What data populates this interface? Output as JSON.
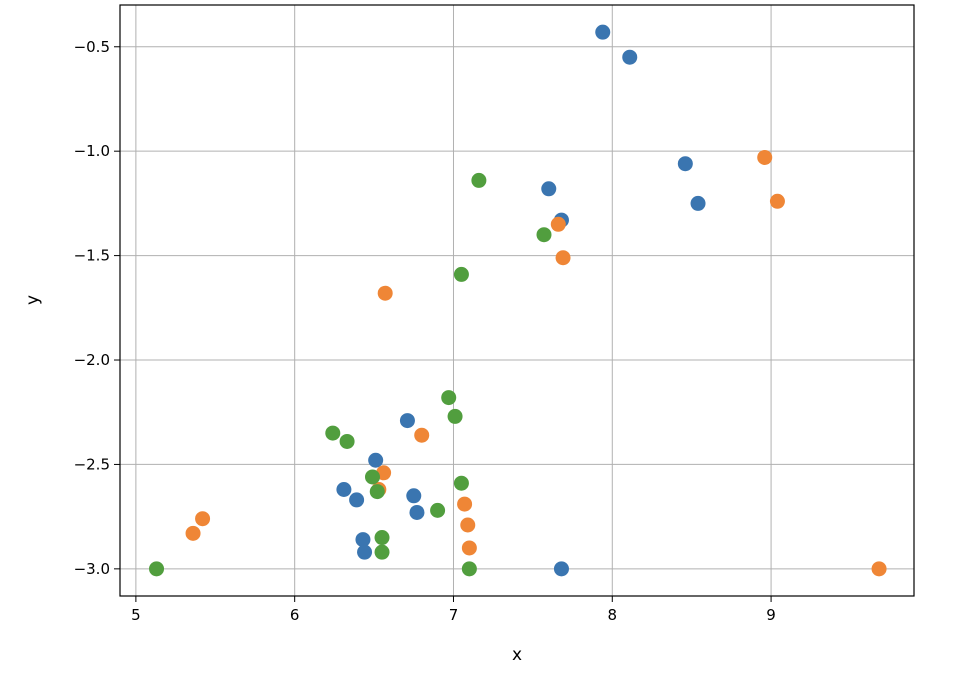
{
  "chart_data": {
    "type": "scatter",
    "title": "",
    "xlabel": "x",
    "ylabel": "y",
    "xlim": [
      4.9,
      9.9
    ],
    "ylim": [
      -3.13,
      -0.3
    ],
    "xticks": [
      5,
      6,
      7,
      8,
      9
    ],
    "xtick_labels": [
      "5",
      "6",
      "7",
      "8",
      "9"
    ],
    "yticks": [
      -0.5,
      -1.0,
      -1.5,
      -2.0,
      -2.5,
      -3.0
    ],
    "ytick_labels": [
      "−0.5",
      "−1.0",
      "−1.5",
      "−2.0",
      "−2.5",
      "−3.0"
    ],
    "grid": true,
    "legend": "none",
    "series": [
      {
        "color": "#3a75b0",
        "points": [
          [
            7.94,
            -0.43
          ],
          [
            8.11,
            -0.55
          ],
          [
            8.46,
            -1.06
          ],
          [
            8.54,
            -1.25
          ],
          [
            7.6,
            -1.18
          ],
          [
            7.68,
            -1.33
          ],
          [
            6.71,
            -2.29
          ],
          [
            6.51,
            -2.48
          ],
          [
            6.31,
            -2.62
          ],
          [
            6.39,
            -2.67
          ],
          [
            6.75,
            -2.65
          ],
          [
            6.77,
            -2.73
          ],
          [
            6.43,
            -2.86
          ],
          [
            6.44,
            -2.92
          ],
          [
            7.68,
            -3.0
          ]
        ]
      },
      {
        "color": "#ef8636",
        "points": [
          [
            8.96,
            -1.03
          ],
          [
            9.04,
            -1.24
          ],
          [
            7.66,
            -1.35
          ],
          [
            7.69,
            -1.51
          ],
          [
            6.57,
            -1.68
          ],
          [
            6.8,
            -2.36
          ],
          [
            6.56,
            -2.54
          ],
          [
            6.53,
            -2.62
          ],
          [
            7.07,
            -2.69
          ],
          [
            7.09,
            -2.79
          ],
          [
            7.1,
            -2.9
          ],
          [
            5.42,
            -2.76
          ],
          [
            5.36,
            -2.83
          ],
          [
            9.68,
            -3.0
          ]
        ]
      },
      {
        "color": "#519e3e",
        "points": [
          [
            7.16,
            -1.14
          ],
          [
            7.57,
            -1.4
          ],
          [
            7.05,
            -1.59
          ],
          [
            6.97,
            -2.18
          ],
          [
            7.01,
            -2.27
          ],
          [
            6.24,
            -2.35
          ],
          [
            6.33,
            -2.39
          ],
          [
            6.49,
            -2.56
          ],
          [
            6.52,
            -2.63
          ],
          [
            7.05,
            -2.59
          ],
          [
            6.9,
            -2.72
          ],
          [
            6.55,
            -2.85
          ],
          [
            6.55,
            -2.92
          ],
          [
            7.1,
            -3.0
          ],
          [
            5.13,
            -3.0
          ]
        ]
      }
    ]
  }
}
